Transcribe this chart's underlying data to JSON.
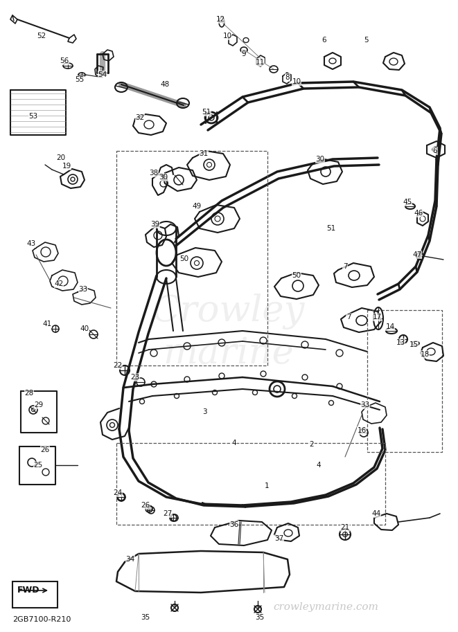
{
  "background_color": "#ffffff",
  "watermark_text": "crowleymarine.com",
  "watermark_color": "#c0c0c0",
  "fwd_text": "FWD",
  "part_number": "2GB7100-R210",
  "label_fontsize": 7.5,
  "line_color": "#1a1a1a",
  "fig_width": 6.61,
  "fig_height": 9.13,
  "dpi": 100
}
